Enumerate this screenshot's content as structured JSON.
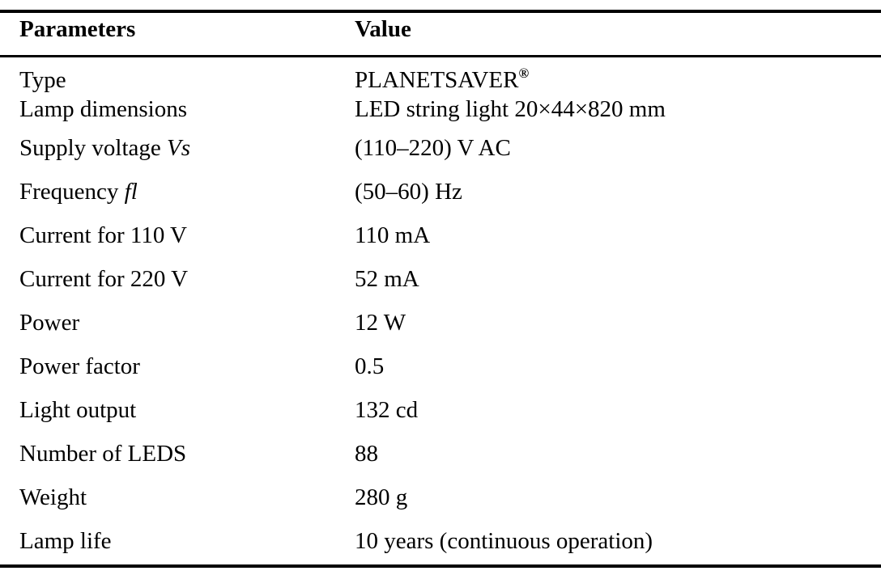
{
  "table": {
    "headers": {
      "parameters": "Parameters",
      "value": "Value"
    },
    "rows": [
      {
        "param": "Type",
        "value": "PLANETSAVER",
        "value_sup": "®"
      },
      {
        "param": "Lamp dimensions",
        "value": "LED string light 20×44×820 mm"
      },
      {
        "param": "Supply voltage",
        "param_symbol": "Vs",
        "value": "(110–220) V AC"
      },
      {
        "param": "Frequency",
        "param_symbol": "fl",
        "value": "(50–60) Hz"
      },
      {
        "param": "Current for 110 V",
        "value": "110 mA"
      },
      {
        "param": "Current for 220 V",
        "value": "52 mA"
      },
      {
        "param": "Power",
        "value": "12 W"
      },
      {
        "param": "Power factor",
        "value": "0.5"
      },
      {
        "param": "Light output",
        "value": "132 cd"
      },
      {
        "param": "Number of LEDS",
        "value": "88"
      },
      {
        "param": "Weight",
        "value": "280 g"
      },
      {
        "param": "Lamp life",
        "value": "10 years (continuous operation)"
      }
    ]
  }
}
